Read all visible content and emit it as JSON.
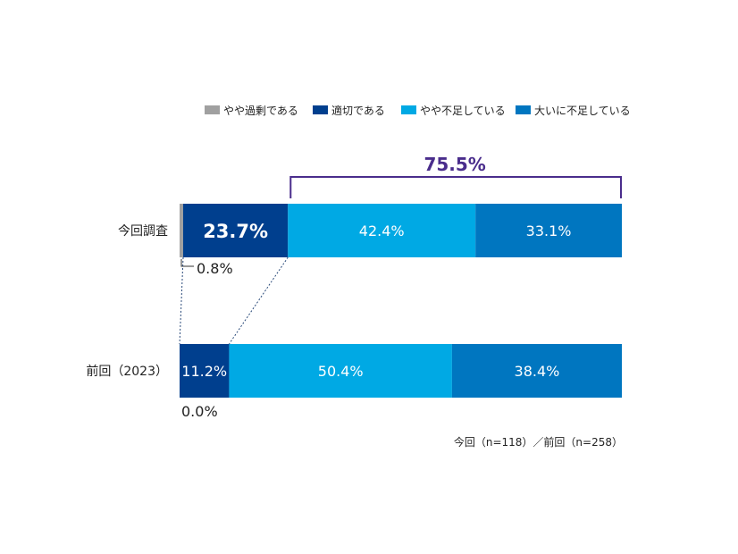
{
  "chart_data": {
    "type": "bar",
    "orientation": "horizontal-stacked-100",
    "legend": [
      {
        "name": "やや過剰である",
        "color": "#a0a0a0"
      },
      {
        "name": "適切である",
        "color": "#003f8e"
      },
      {
        "name": "やや不足している",
        "color": "#00a9e4"
      },
      {
        "name": "大いに不足している",
        "color": "#0076c0"
      }
    ],
    "legend_position": "top",
    "categories": [
      "今回調査",
      "前回（2023）"
    ],
    "series": [
      {
        "name": "やや過剰である",
        "values": [
          0.8,
          0.0
        ],
        "labels": [
          "0.8%",
          "0.0%"
        ]
      },
      {
        "name": "適切である",
        "values": [
          23.7,
          11.2
        ],
        "labels": [
          "23.7%",
          "11.2%"
        ]
      },
      {
        "name": "やや不足している",
        "values": [
          42.4,
          50.4
        ],
        "labels": [
          "42.4%",
          "50.4%"
        ]
      },
      {
        "name": "大いに不足している",
        "values": [
          33.1,
          38.4
        ],
        "labels": [
          "33.1%",
          "38.4%"
        ]
      }
    ],
    "annotation": {
      "label": "75.5%",
      "color": "#4a2d8c"
    },
    "note": "今回（n=118）／前回（n=258）"
  }
}
